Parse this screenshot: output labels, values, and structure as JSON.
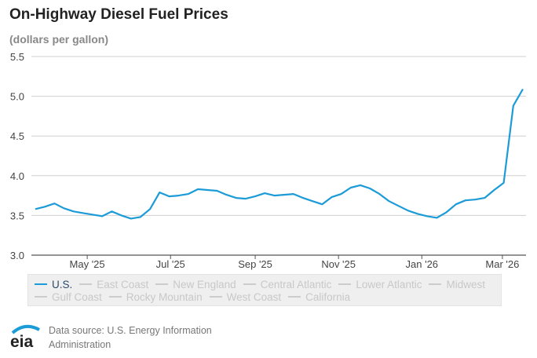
{
  "chart_data": {
    "type": "line",
    "title": "On-Highway Diesel Fuel Prices",
    "subtitle": "(dollars per gallon)",
    "xlabel": "",
    "ylabel": "",
    "ylim": [
      3.0,
      5.5
    ],
    "yticks": [
      "3.0",
      "3.5",
      "4.0",
      "4.5",
      "5.0",
      "5.5"
    ],
    "xticks": [
      {
        "label": "May '25",
        "date": "2025-05-01"
      },
      {
        "label": "Jul '25",
        "date": "2025-07-01"
      },
      {
        "label": "Sep '25",
        "date": "2025-09-01"
      },
      {
        "label": "Nov '25",
        "date": "2025-11-01"
      },
      {
        "label": "Jan '26",
        "date": "2026-01-01"
      },
      {
        "label": "Mar '26",
        "date": "2026-03-01"
      }
    ],
    "grid": true,
    "legend_placement": "bottom",
    "x": [
      "2025-03-24",
      "2025-03-31",
      "2025-04-07",
      "2025-04-14",
      "2025-04-21",
      "2025-04-28",
      "2025-05-05",
      "2025-05-12",
      "2025-05-19",
      "2025-05-26",
      "2025-06-02",
      "2025-06-09",
      "2025-06-16",
      "2025-06-23",
      "2025-06-30",
      "2025-07-07",
      "2025-07-14",
      "2025-07-21",
      "2025-07-28",
      "2025-08-04",
      "2025-08-11",
      "2025-08-18",
      "2025-08-25",
      "2025-09-01",
      "2025-09-08",
      "2025-09-15",
      "2025-09-22",
      "2025-09-29",
      "2025-10-06",
      "2025-10-13",
      "2025-10-20",
      "2025-10-27",
      "2025-11-03",
      "2025-11-10",
      "2025-11-17",
      "2025-11-24",
      "2025-12-01",
      "2025-12-08",
      "2025-12-15",
      "2025-12-22",
      "2025-12-29",
      "2026-01-05",
      "2026-01-12",
      "2026-01-19",
      "2026-01-26",
      "2026-02-02",
      "2026-02-09",
      "2026-02-16",
      "2026-02-23",
      "2026-03-02",
      "2026-03-09",
      "2026-03-16"
    ],
    "series": [
      {
        "name": "U.S.",
        "color": "#1b9bd7",
        "visible": true,
        "values": [
          3.58,
          3.61,
          3.65,
          3.59,
          3.55,
          3.53,
          3.51,
          3.49,
          3.55,
          3.5,
          3.46,
          3.48,
          3.58,
          3.79,
          3.74,
          3.75,
          3.77,
          3.83,
          3.82,
          3.81,
          3.76,
          3.72,
          3.71,
          3.74,
          3.78,
          3.75,
          3.76,
          3.77,
          3.72,
          3.68,
          3.64,
          3.73,
          3.77,
          3.85,
          3.88,
          3.84,
          3.77,
          3.68,
          3.62,
          3.56,
          3.52,
          3.49,
          3.47,
          3.54,
          3.64,
          3.69,
          3.7,
          3.72,
          3.82,
          3.91,
          4.88,
          5.09
        ]
      },
      {
        "name": "East Coast",
        "color": "#cccccc",
        "visible": false
      },
      {
        "name": "New England",
        "color": "#cccccc",
        "visible": false
      },
      {
        "name": "Central Atlantic",
        "color": "#cccccc",
        "visible": false
      },
      {
        "name": "Lower Atlantic",
        "color": "#cccccc",
        "visible": false
      },
      {
        "name": "Midwest",
        "color": "#cccccc",
        "visible": false
      },
      {
        "name": "Gulf Coast",
        "color": "#cccccc",
        "visible": false
      },
      {
        "name": "Rocky Mountain",
        "color": "#cccccc",
        "visible": false
      },
      {
        "name": "West Coast",
        "color": "#cccccc",
        "visible": false
      },
      {
        "name": "California",
        "color": "#cccccc",
        "visible": false
      }
    ]
  },
  "footer": {
    "source_line1": "Data source: U.S. Energy Information",
    "source_line2": "Administration",
    "logo_text": "eia"
  }
}
